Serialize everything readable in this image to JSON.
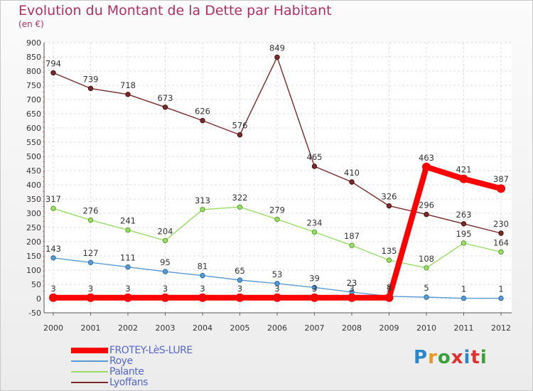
{
  "title": "Evolution du Montant de la Dette par Habitant",
  "subtitle": "(en €)",
  "logo": {
    "text": "Proxiti",
    "colors": [
      "#2a88c8",
      "#e89a20",
      "#3aa03a",
      "#e03030",
      "#2a88c8",
      "#e03030",
      "#3aa03a"
    ]
  },
  "chart_data": {
    "type": "line",
    "title": "Evolution du Montant de la Dette par Habitant",
    "ylabel": "(en €)",
    "ylim": [
      -50,
      900
    ],
    "yticks": [
      -50,
      0,
      50,
      100,
      150,
      200,
      250,
      300,
      350,
      400,
      450,
      500,
      550,
      600,
      650,
      700,
      750,
      800,
      850,
      900
    ],
    "categories": [
      "2000",
      "2001",
      "2002",
      "2003",
      "2004",
      "2005",
      "2006",
      "2007",
      "2008",
      "2009",
      "2010",
      "2011",
      "2012"
    ],
    "grid": true,
    "legend_position": "bottom-left",
    "series": [
      {
        "name": "Lyoffans",
        "color": "#7a2a2a",
        "values": [
          794,
          739,
          718,
          673,
          626,
          576,
          849,
          465,
          410,
          326,
          296,
          263,
          230
        ]
      },
      {
        "name": "Palante",
        "color": "#99dd66",
        "values": [
          317,
          276,
          241,
          204,
          313,
          322,
          279,
          234,
          187,
          135,
          108,
          195,
          164
        ]
      },
      {
        "name": "Roye",
        "color": "#5a9ad5",
        "values": [
          143,
          127,
          111,
          95,
          81,
          65,
          53,
          39,
          23,
          8,
          5,
          1,
          1
        ]
      },
      {
        "name": "FROTEY-LèS-LURE",
        "color": "#ff0000",
        "values": [
          3,
          3,
          3,
          3,
          3,
          3,
          3,
          3,
          3,
          3,
          463,
          421,
          387
        ]
      }
    ]
  }
}
